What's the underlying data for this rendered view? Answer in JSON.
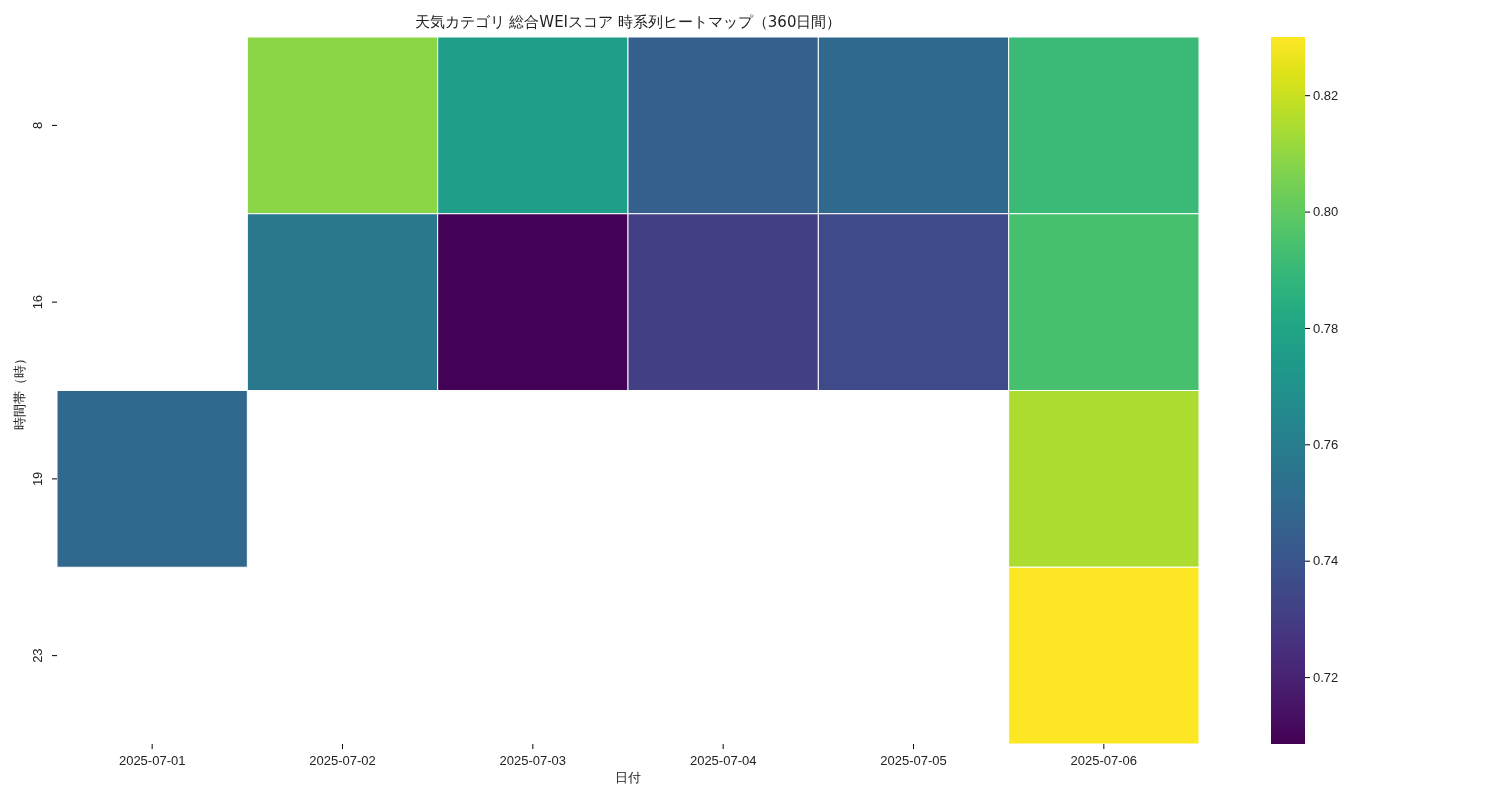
{
  "chart_data": {
    "type": "heatmap",
    "title": "天気カテゴリ 総合WEIスコア 時系列ヒートマップ（360日間）",
    "xlabel": "日付",
    "ylabel": "時間帯（時）",
    "categories": [
      "2025-07-01",
      "2025-07-02",
      "2025-07-03",
      "2025-07-04",
      "2025-07-05",
      "2025-07-06"
    ],
    "y_categories": [
      "8",
      "16",
      "19",
      "23"
    ],
    "cells": [
      [
        null,
        0.809,
        0.776,
        0.745,
        0.749,
        0.791
      ],
      [
        null,
        0.757,
        0.709,
        0.731,
        0.736,
        0.794
      ],
      [
        0.749,
        null,
        null,
        null,
        null,
        0.815
      ],
      [
        null,
        null,
        null,
        null,
        null,
        0.83
      ]
    ],
    "clim": [
      0.7085,
      0.83
    ],
    "cticks": [
      0.72,
      0.74,
      0.76,
      0.78,
      {
        "value": 0.8,
        "label": "0.80"
      },
      0.82
    ]
  }
}
